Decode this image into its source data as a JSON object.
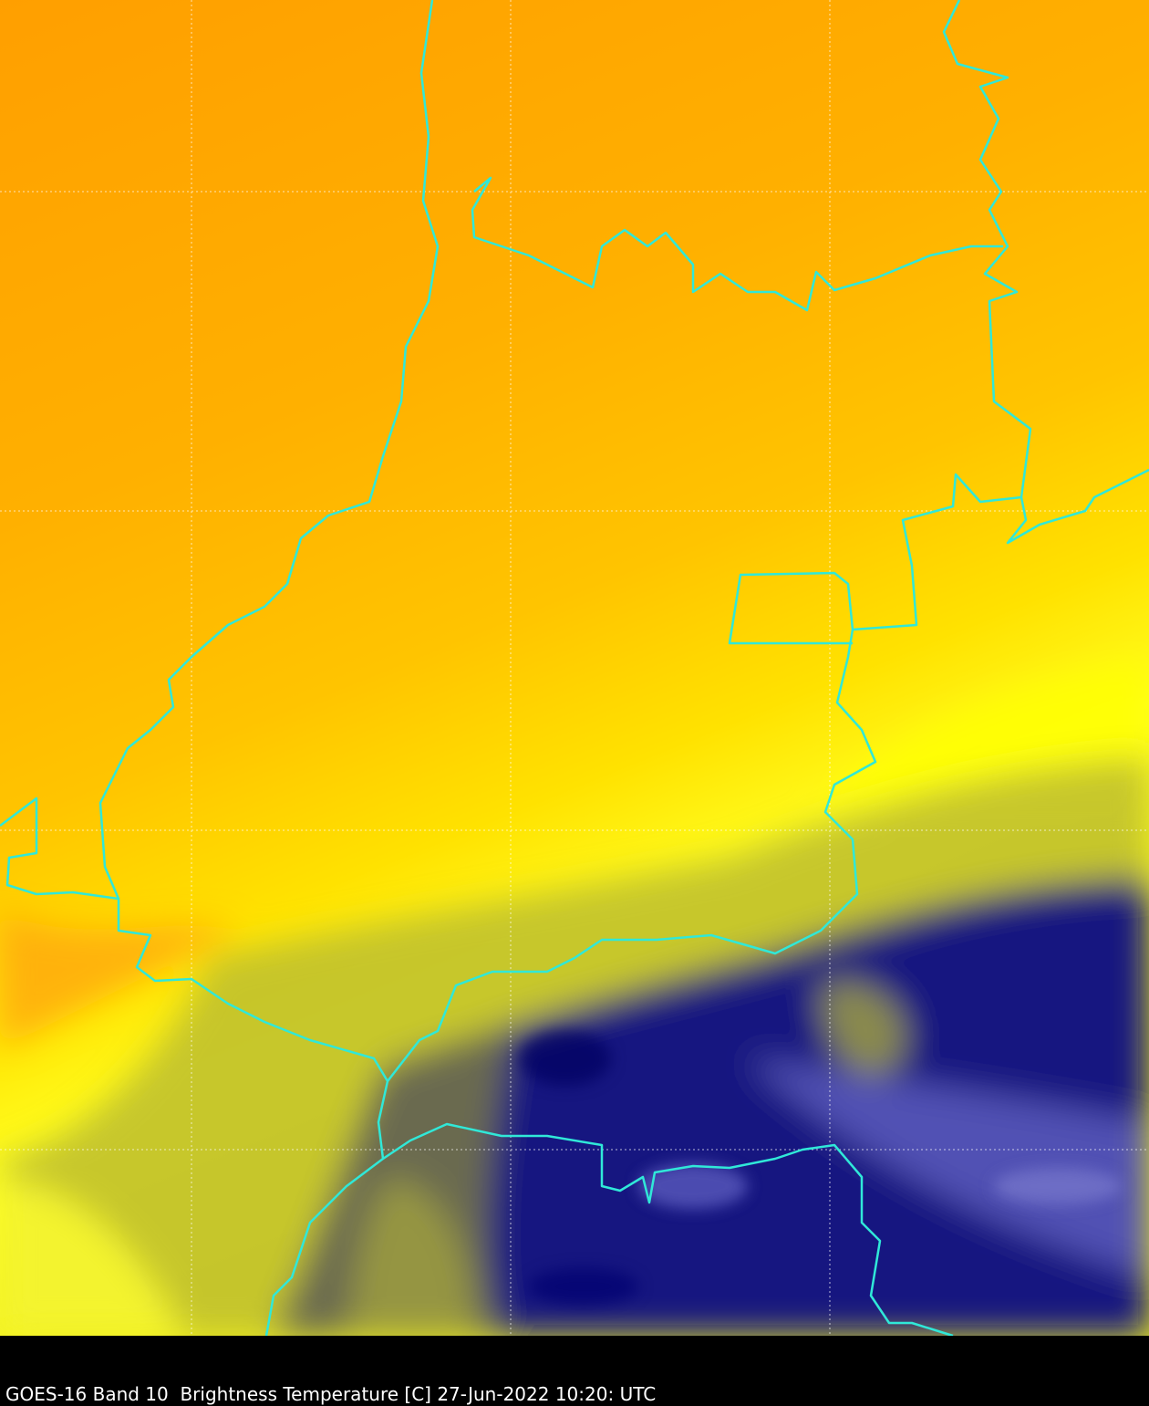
{
  "caption": "GOES-16 Band 10  Brightness Temperature [C] 27-Jun-2022 10:20: UTC"
}
